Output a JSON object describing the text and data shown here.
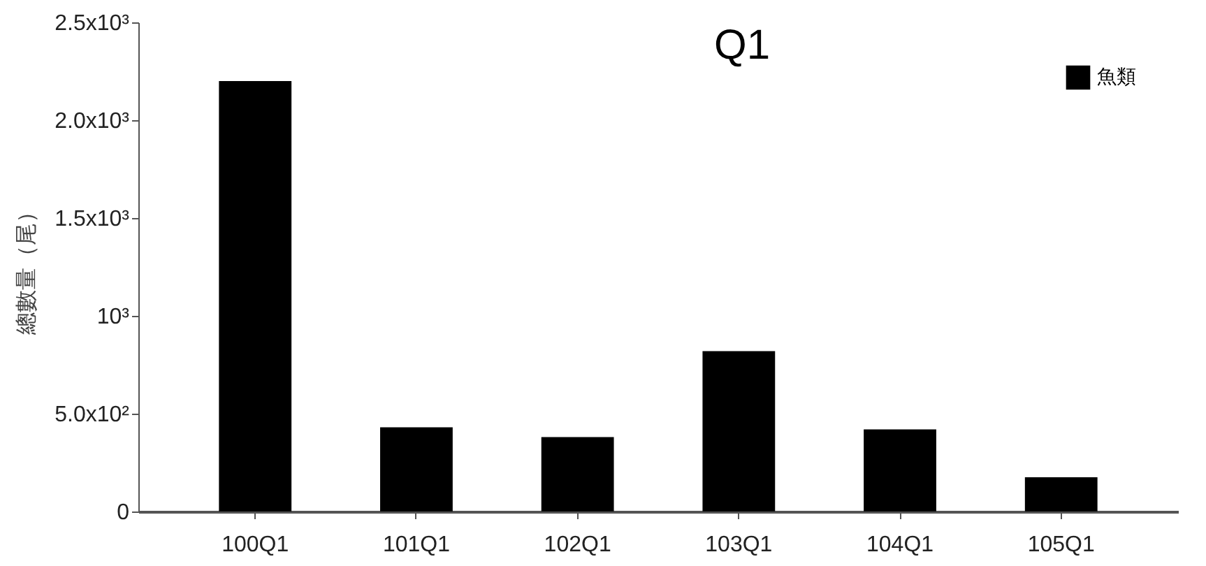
{
  "chart_data": {
    "type": "bar",
    "title": "Q1",
    "ylabel": "總數量（尾）",
    "categories": [
      "100Q1",
      "101Q1",
      "102Q1",
      "103Q1",
      "104Q1",
      "105Q1"
    ],
    "series": [
      {
        "name": "魚類",
        "color": "#000000",
        "values": [
          2200,
          430,
          380,
          820,
          420,
          175
        ]
      }
    ],
    "ylim": [
      0,
      2500
    ],
    "yticks": [
      0,
      {
        "value": 500,
        "label": "5.0x10²"
      },
      {
        "value": 1000,
        "label": "10³"
      },
      {
        "value": 1500,
        "label": "1.5x10³"
      },
      {
        "value": 2000,
        "label": "2.0x10³"
      },
      {
        "value": 2500,
        "label": "2.5x10³"
      }
    ],
    "grid": false,
    "legend": "top right"
  }
}
